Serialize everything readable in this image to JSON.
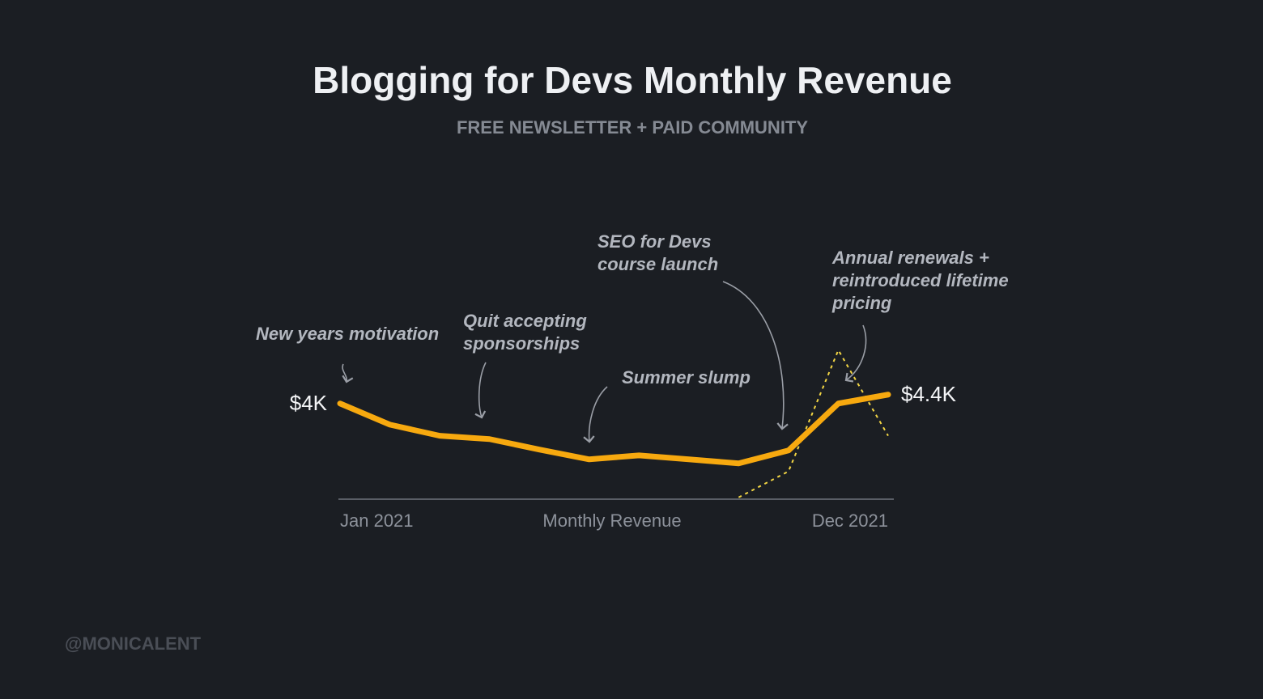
{
  "chart_data": {
    "type": "line",
    "title": "Blogging for Devs Monthly Revenue",
    "subtitle": "FREE NEWSLETTER + PAID COMMUNITY",
    "x_label": "Monthly Revenue",
    "categories": [
      "Jan 2021",
      null,
      null,
      null,
      null,
      null,
      null,
      null,
      null,
      null,
      null,
      "Dec 2021"
    ],
    "series": [
      {
        "color": "#f7a90f",
        "values": [
          4000,
          3050,
          2550,
          2400,
          1930,
          1490,
          1670,
          1490,
          1310,
          1890,
          4000,
          4400
        ],
        "value_labels": [
          "$4K",
          null,
          null,
          null,
          null,
          null,
          null,
          null,
          null,
          null,
          null,
          "$4.4K"
        ]
      },
      {
        "color": "#f2d544",
        "dashed": true,
        "values": [
          null,
          null,
          null,
          null,
          null,
          null,
          null,
          null,
          -220,
          950,
          6400,
          2550
        ]
      }
    ],
    "ylim": [
      -300,
      6500
    ],
    "annotations": [
      {
        "lines": [
          "New years motivation"
        ]
      },
      {
        "lines": [
          "Quit accepting",
          "sponsorships"
        ]
      },
      {
        "lines": [
          "Summer slump"
        ]
      },
      {
        "lines": [
          "SEO for Devs",
          "course launch"
        ]
      },
      {
        "lines": [
          "Annual renewals +",
          "reintroduced lifetime",
          "pricing"
        ]
      }
    ],
    "credit": "@MONICALENT"
  }
}
